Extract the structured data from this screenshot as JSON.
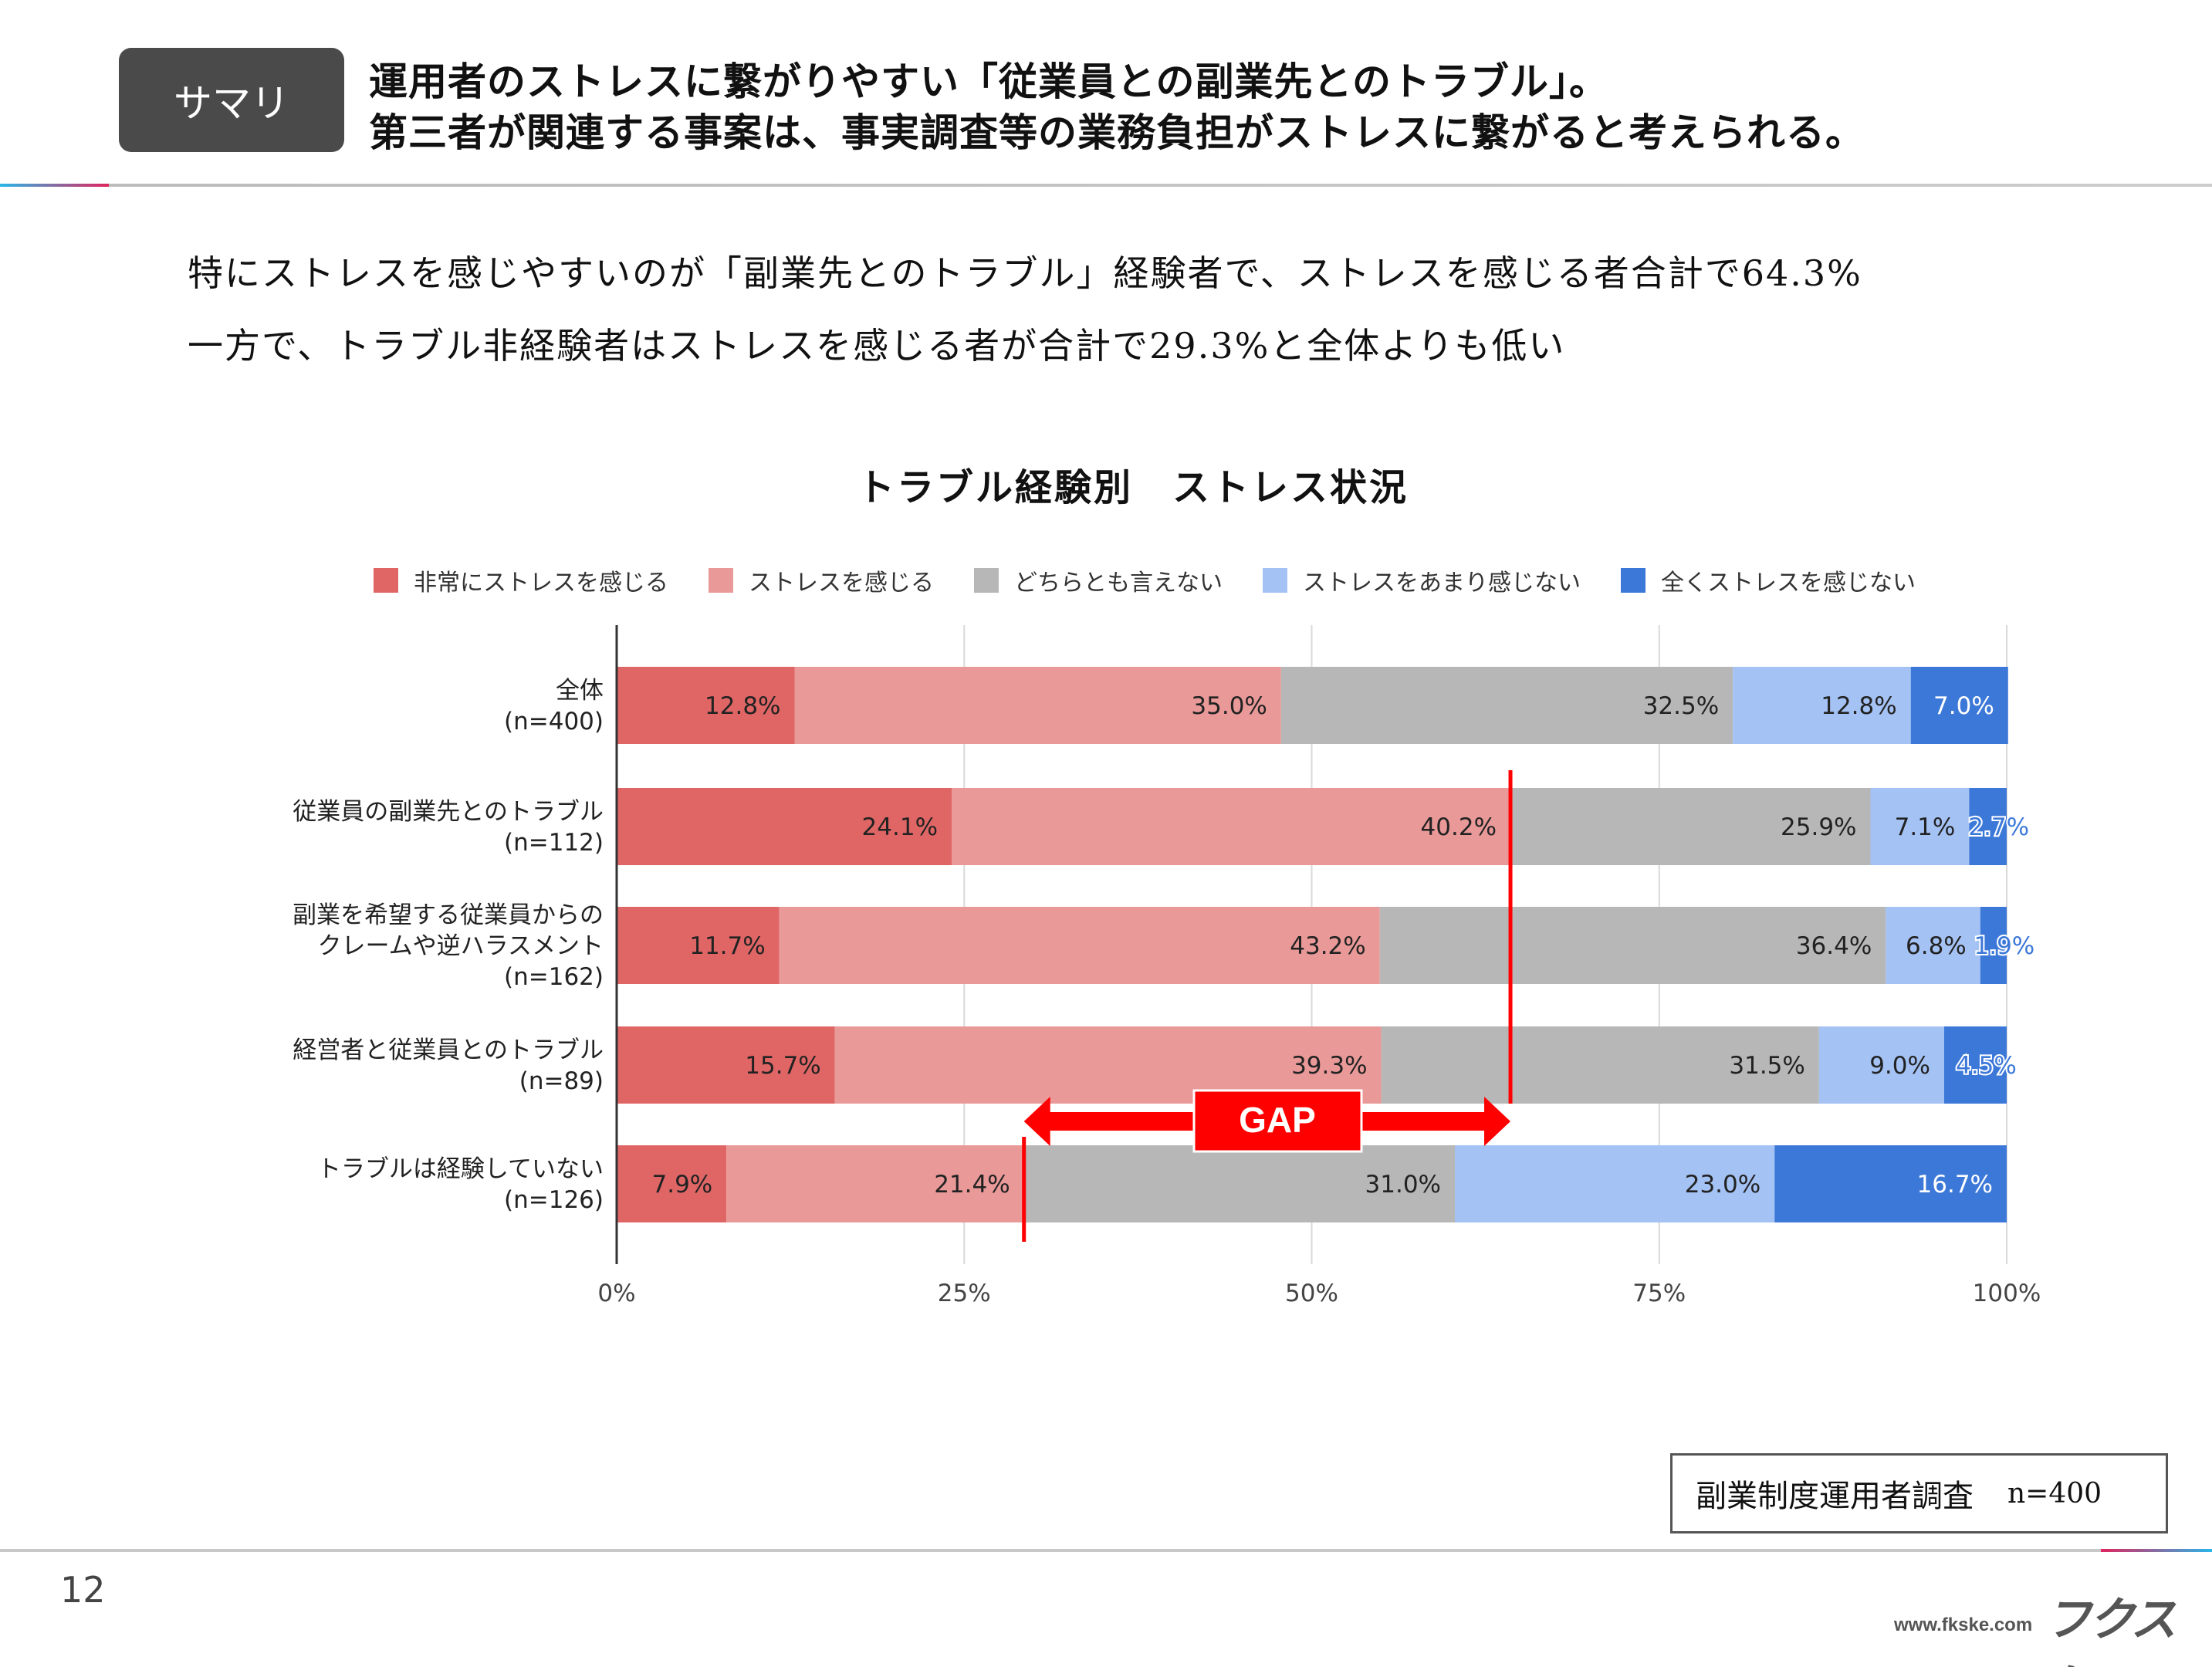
{
  "header": {
    "badge": "サマリ",
    "headline_lines": [
      "運用者のストレスに繋がりやすい「従業員との副業先とのトラブル」。",
      "第三者が関連する事案は、事実調査等の業務負担がストレスに繋がると考えられる。"
    ]
  },
  "body": {
    "lines": [
      "特にストレスを感じやすいのが「副業先とのトラブル」経験者で、ストレスを感じる者合計で64.3%",
      "一方で、トラブル非経験者はストレスを感じる者が合計で29.3%と全体よりも低い"
    ]
  },
  "chart_data": {
    "type": "bar",
    "orientation": "horizontal",
    "stacked": "percent",
    "title": "トラブル経験別　ストレス状況",
    "categories": [
      [
        "全体",
        "(n=400)"
      ],
      [
        "従業員の副業先とのトラブル",
        "(n=112)"
      ],
      [
        "副業を希望する従業員からの",
        "クレームや逆ハラスメント",
        "(n=162)"
      ],
      [
        "経営者と従業員とのトラブル",
        "(n=89)"
      ],
      [
        "トラブルは経験していない",
        "(n=126)"
      ]
    ],
    "series": [
      {
        "name": "非常にストレスを感じる",
        "color": "#e06666",
        "values": [
          12.8,
          24.1,
          11.7,
          15.7,
          7.9
        ]
      },
      {
        "name": "ストレスを感じる",
        "color": "#ea9999",
        "values": [
          35.0,
          40.2,
          43.2,
          39.3,
          21.4
        ]
      },
      {
        "name": "どちらとも言えない",
        "color": "#b7b7b7",
        "values": [
          32.5,
          25.9,
          36.4,
          31.5,
          31.0
        ]
      },
      {
        "name": "ストレスをあまり感じない",
        "color": "#a4c2f4",
        "values": [
          12.8,
          7.1,
          6.8,
          9.0,
          23.0
        ]
      },
      {
        "name": "全くストレスを感じない",
        "color": "#3c78d8",
        "values": [
          7.0,
          2.7,
          1.9,
          4.5,
          16.7
        ]
      }
    ],
    "xlim": [
      0,
      100
    ],
    "xticks": [
      "0%",
      "25%",
      "50%",
      "75%",
      "100%"
    ],
    "grid": true,
    "legend": "top",
    "annotation": {
      "label": "GAP",
      "from": 29.3,
      "to": 64.3,
      "color": "#ff0000"
    }
  },
  "source": {
    "label": "副業制度運用者調査",
    "n": "n=400"
  },
  "footer": {
    "page_number": "12",
    "url": "www.fkske.com",
    "logo": "フクスケ"
  }
}
